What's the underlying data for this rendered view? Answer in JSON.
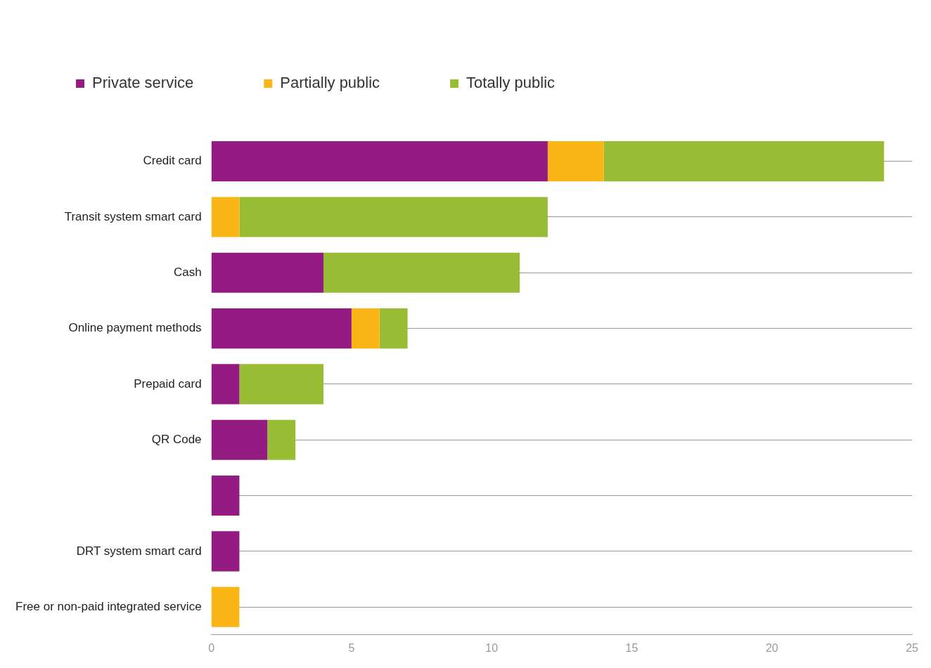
{
  "chart_data": {
    "type": "bar",
    "orientation": "horizontal",
    "stacked": true,
    "categories": [
      "Credit card",
      "Transit system smart card",
      "Cash",
      "Online payment methods",
      "Prepaid card",
      "QR Code",
      null,
      "DRT system smart card",
      "Free or non-paid integrated service"
    ],
    "series": [
      {
        "name": "Private service",
        "color": "#931b81",
        "values": [
          12,
          0,
          4,
          5,
          1,
          2,
          1,
          1,
          0
        ]
      },
      {
        "name": "Partially public",
        "color": "#fbb516",
        "values": [
          2,
          1,
          0,
          1,
          0,
          0,
          0,
          0,
          1
        ]
      },
      {
        "name": "Totally public",
        "color": "#98bc34",
        "values": [
          10,
          11,
          7,
          1,
          3,
          1,
          0,
          0,
          0
        ]
      }
    ],
    "xlim": [
      0,
      25
    ],
    "xticks": [
      0,
      5,
      10,
      15,
      20,
      25
    ],
    "grid": "y",
    "legend": "top left"
  }
}
